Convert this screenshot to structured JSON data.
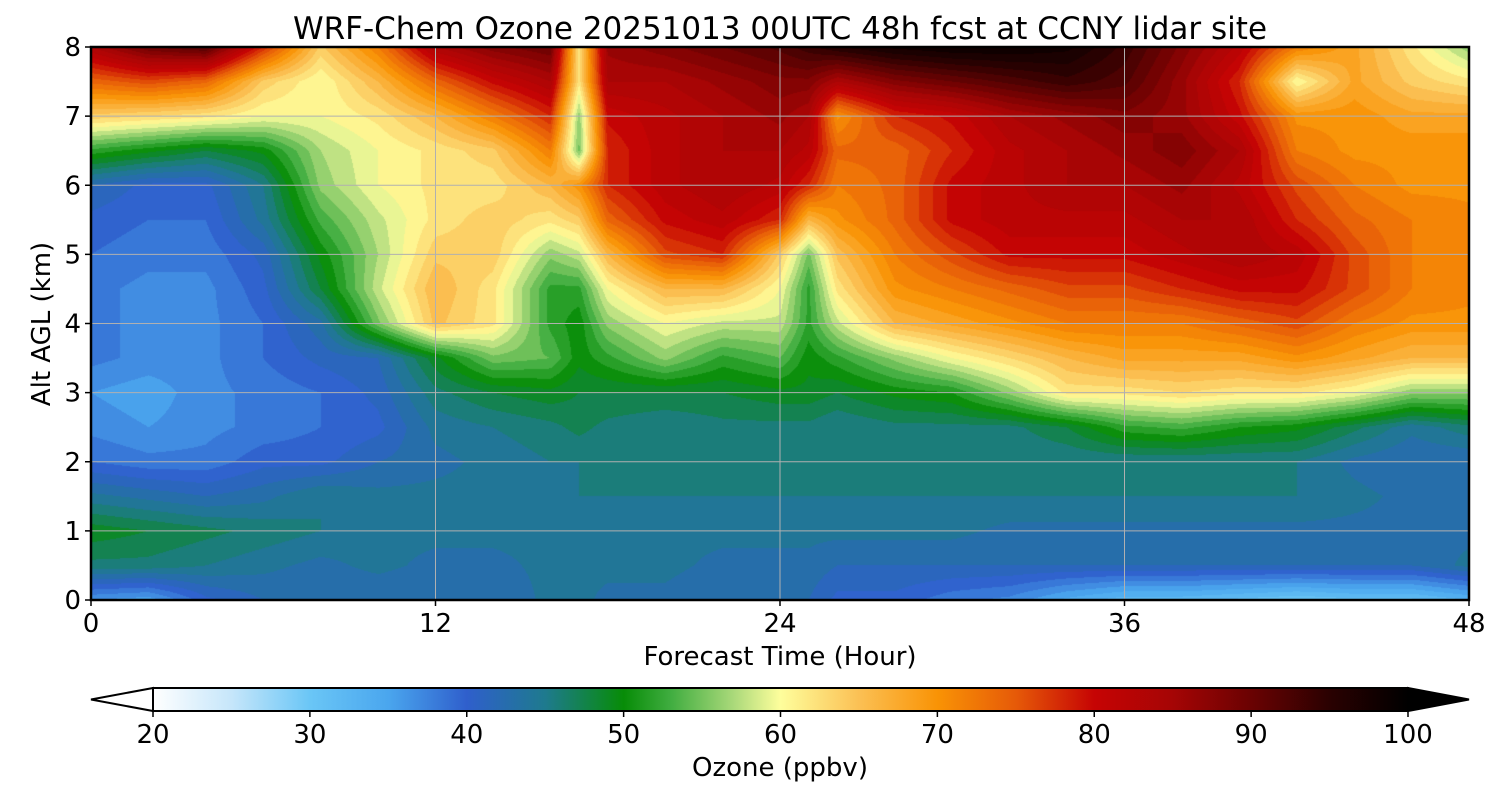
{
  "chart_data": {
    "type": "heatmap",
    "title": "WRF-Chem Ozone  20251013 00UTC 48h fcst at CCNY lidar site",
    "xlabel": "Forecast Time (Hour)",
    "ylabel": "Alt AGL (km)",
    "xlim": [
      0,
      48
    ],
    "ylim": [
      0,
      8
    ],
    "x_ticks": [
      0,
      12,
      24,
      36,
      48
    ],
    "y_ticks": [
      0,
      1,
      2,
      3,
      4,
      5,
      6,
      7,
      8
    ],
    "grid": true,
    "colorbar": {
      "label": "Ozone  (ppbv)",
      "orientation": "horizontal",
      "placement": "bottom",
      "range": [
        20,
        100
      ],
      "ticks": [
        20,
        30,
        40,
        50,
        60,
        70,
        80,
        90,
        100
      ],
      "extend": "both",
      "stops": [
        {
          "value": 20,
          "color": "#ffffff"
        },
        {
          "value": 25,
          "color": "#c6e6fa"
        },
        {
          "value": 30,
          "color": "#6ac6f6"
        },
        {
          "value": 35,
          "color": "#4aa6ee"
        },
        {
          "value": 40,
          "color": "#2f5fcc"
        },
        {
          "value": 45,
          "color": "#1e7a8e"
        },
        {
          "value": 50,
          "color": "#078c07"
        },
        {
          "value": 53,
          "color": "#40ad40"
        },
        {
          "value": 57,
          "color": "#aad97a"
        },
        {
          "value": 60,
          "color": "#fefe9c"
        },
        {
          "value": 65,
          "color": "#fbc054"
        },
        {
          "value": 70,
          "color": "#f99305"
        },
        {
          "value": 75,
          "color": "#e65a08"
        },
        {
          "value": 80,
          "color": "#c60404"
        },
        {
          "value": 85,
          "color": "#a50505"
        },
        {
          "value": 90,
          "color": "#6a0202"
        },
        {
          "value": 95,
          "color": "#2a0101"
        },
        {
          "value": 100,
          "color": "#000000"
        }
      ]
    },
    "grid_x": [
      0,
      2,
      4,
      6,
      8,
      10,
      12,
      14,
      16,
      17,
      18,
      20,
      22,
      24,
      25,
      26,
      28,
      30,
      32,
      34,
      36,
      38,
      40,
      42,
      44,
      46,
      48
    ],
    "grid_y": [
      0,
      0.5,
      1,
      1.5,
      2,
      2.5,
      3,
      3.5,
      4,
      4.5,
      5,
      5.5,
      6,
      6.5,
      7,
      7.5,
      8
    ],
    "z": [
      [
        36,
        35,
        40,
        42,
        42,
        42,
        42,
        42,
        44,
        44,
        43,
        43,
        42,
        42,
        42,
        40,
        40,
        38,
        37,
        34,
        32,
        32,
        31,
        30,
        31,
        31,
        33
      ],
      [
        46,
        46,
        45,
        44,
        43,
        44,
        43,
        43,
        44,
        44,
        44,
        44,
        43,
        43,
        43,
        42,
        42,
        42,
        42,
        42,
        42,
        42,
        42,
        42,
        42,
        42,
        44
      ],
      [
        49,
        48,
        47,
        46,
        45,
        44,
        44,
        44,
        44,
        44,
        44,
        44,
        44,
        44,
        44,
        44,
        44,
        44,
        43,
        43,
        43,
        43,
        43,
        43,
        43,
        43,
        43
      ],
      [
        44,
        43,
        42,
        43,
        45,
        44,
        44,
        44,
        44,
        45,
        45,
        45,
        45,
        45,
        45,
        45,
        45,
        45,
        45,
        45,
        45,
        45,
        45,
        45,
        44,
        43,
        43
      ],
      [
        39,
        38,
        38,
        40,
        40,
        42,
        43,
        44,
        45,
        45,
        45,
        45,
        45,
        46,
        45,
        45,
        45,
        45,
        45,
        45,
        45,
        45,
        45,
        45,
        43,
        42,
        42
      ],
      [
        37,
        36,
        37,
        38,
        39,
        40,
        44,
        45,
        46,
        47,
        46,
        45,
        46,
        46,
        46,
        45,
        46,
        46,
        46,
        48,
        52,
        53,
        51,
        50,
        47,
        44,
        46
      ],
      [
        36,
        35,
        37,
        38,
        39,
        41,
        46,
        48,
        49,
        48,
        48,
        48,
        48,
        49,
        49,
        48,
        50,
        51,
        56,
        62,
        62,
        63,
        62,
        62,
        60,
        56,
        56
      ],
      [
        38,
        37,
        37,
        39,
        41,
        42,
        49,
        55,
        54,
        50,
        52,
        56,
        52,
        54,
        50,
        52,
        56,
        60,
        63,
        66,
        68,
        68,
        68,
        70,
        68,
        66,
        66
      ],
      [
        38,
        37,
        37,
        39,
        43,
        55,
        65,
        62,
        52,
        50,
        56,
        60,
        58,
        58,
        52,
        58,
        66,
        68,
        70,
        72,
        72,
        72,
        74,
        76,
        72,
        70,
        70
      ],
      [
        38,
        37,
        37,
        40,
        48,
        58,
        66,
        62,
        52,
        52,
        60,
        66,
        66,
        60,
        52,
        62,
        70,
        72,
        74,
        76,
        76,
        78,
        80,
        80,
        76,
        72,
        71
      ],
      [
        39,
        38,
        38,
        41,
        50,
        57,
        64,
        64,
        56,
        58,
        66,
        76,
        78,
        64,
        55,
        65,
        72,
        76,
        80,
        80,
        80,
        82,
        84,
        82,
        76,
        72,
        72
      ],
      [
        40,
        39,
        39,
        44,
        53,
        58,
        62,
        64,
        62,
        64,
        74,
        80,
        82,
        78,
        66,
        70,
        74,
        80,
        82,
        82,
        82,
        84,
        84,
        78,
        74,
        72,
        71
      ],
      [
        42,
        40,
        40,
        45,
        56,
        60,
        62,
        62,
        66,
        70,
        78,
        82,
        84,
        82,
        78,
        72,
        74,
        80,
        82,
        84,
        84,
        86,
        82,
        76,
        72,
        70,
        70
      ],
      [
        52,
        50,
        48,
        50,
        57,
        60,
        62,
        64,
        72,
        55,
        78,
        82,
        84,
        84,
        82,
        74,
        74,
        78,
        82,
        84,
        86,
        88,
        84,
        72,
        70,
        70,
        70
      ],
      [
        64,
        63,
        62,
        60,
        60,
        62,
        66,
        72,
        78,
        56,
        80,
        82,
        84,
        86,
        84,
        70,
        78,
        80,
        84,
        86,
        88,
        86,
        80,
        70,
        70,
        68,
        68
      ],
      [
        74,
        76,
        74,
        64,
        60,
        66,
        74,
        80,
        84,
        62,
        84,
        84,
        86,
        88,
        88,
        84,
        88,
        90,
        92,
        94,
        92,
        86,
        78,
        60,
        68,
        64,
        62
      ],
      [
        84,
        90,
        92,
        78,
        64,
        72,
        84,
        88,
        90,
        62,
        86,
        88,
        90,
        92,
        94,
        96,
        98,
        99,
        99,
        98,
        94,
        88,
        82,
        72,
        68,
        62,
        56
      ]
    ]
  }
}
